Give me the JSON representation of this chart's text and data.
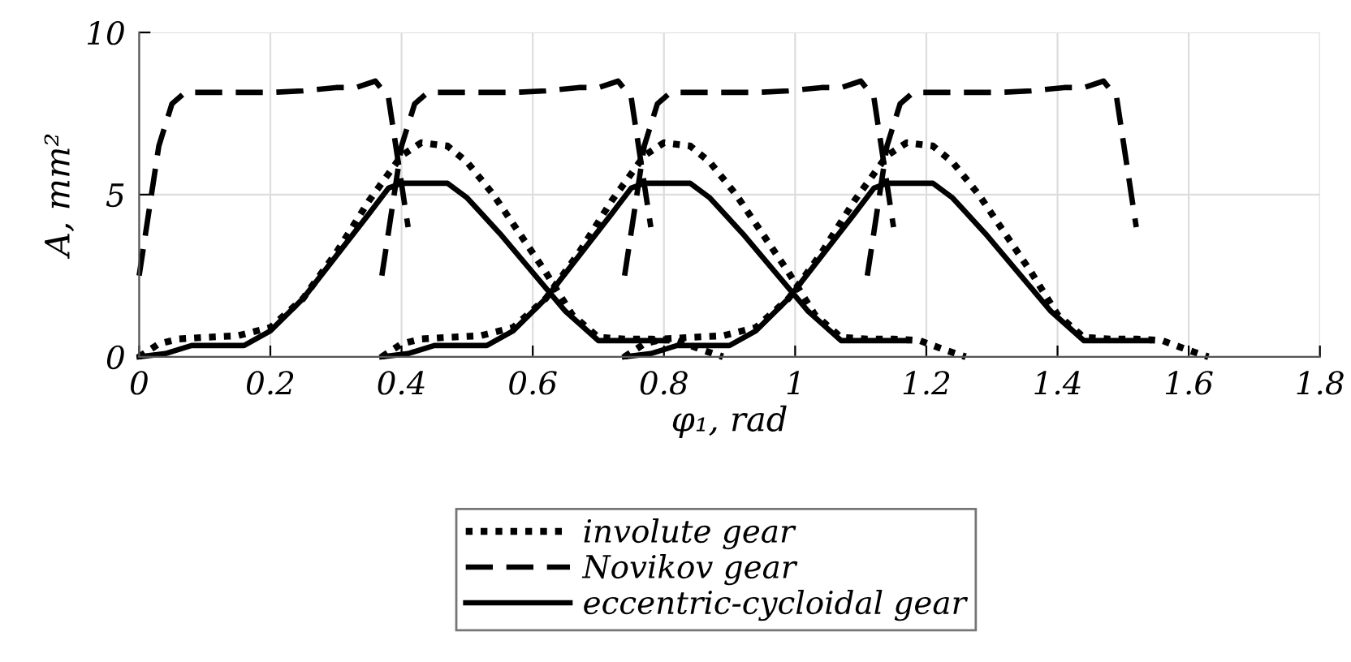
{
  "chart_data": {
    "type": "line",
    "xlabel": "φ₁, rad",
    "ylabel": "A, mm²",
    "xlim": [
      0,
      1.8
    ],
    "xticks": [
      0,
      0.2,
      0.4,
      0.6,
      0.8,
      1,
      1.2,
      1.4,
      1.6,
      1.8
    ],
    "ylim": [
      0,
      10
    ],
    "yticks": [
      0,
      5,
      10
    ],
    "grid": true,
    "legend": "bottom",
    "marker": "none",
    "series": [
      {
        "name": "involute gear",
        "color": "#000000",
        "line_style": "dotted",
        "x": [
          0,
          0.03,
          0.06,
          0.1,
          0.15,
          0.2,
          0.25,
          0.3,
          0.35,
          0.4,
          0.43,
          0.47,
          0.5,
          0.54,
          0.58,
          0.62,
          0.66,
          0.7,
          0.74,
          0.78,
          0.82,
          0.86,
          0.89
        ],
        "values": [
          0,
          0.4,
          0.55,
          0.6,
          0.65,
          0.9,
          1.8,
          3.2,
          4.8,
          6.2,
          6.6,
          6.5,
          6.0,
          5.0,
          3.8,
          2.6,
          1.3,
          0.6,
          0.55,
          0.55,
          0.5,
          0.2,
          0
        ]
      },
      {
        "color": "#000000",
        "line_style": "dotted",
        "x": [
          0.37,
          0.4,
          0.43,
          0.47,
          0.52,
          0.57,
          0.62,
          0.67,
          0.72,
          0.77,
          0.8,
          0.84,
          0.87,
          0.91,
          0.95,
          0.99,
          1.03,
          1.07,
          1.11,
          1.15,
          1.19,
          1.23,
          1.26
        ],
        "values": [
          0,
          0.4,
          0.55,
          0.6,
          0.65,
          0.9,
          1.8,
          3.2,
          4.8,
          6.2,
          6.6,
          6.5,
          6.0,
          5.0,
          3.8,
          2.6,
          1.3,
          0.6,
          0.55,
          0.55,
          0.5,
          0.2,
          0
        ]
      },
      {
        "color": "#000000",
        "line_style": "dotted",
        "x": [
          0.74,
          0.77,
          0.8,
          0.84,
          0.89,
          0.94,
          0.99,
          1.04,
          1.09,
          1.14,
          1.17,
          1.21,
          1.24,
          1.28,
          1.32,
          1.36,
          1.4,
          1.44,
          1.48,
          1.52,
          1.56,
          1.6,
          1.63
        ],
        "values": [
          0,
          0.4,
          0.55,
          0.6,
          0.65,
          0.9,
          1.8,
          3.2,
          4.8,
          6.2,
          6.6,
          6.5,
          6.0,
          5.0,
          3.8,
          2.6,
          1.3,
          0.6,
          0.55,
          0.55,
          0.5,
          0.2,
          0
        ]
      },
      {
        "name": "Novikov gear",
        "color": "#000000",
        "line_style": "dashed",
        "x": [
          0,
          0.03,
          0.05,
          0.07,
          0.15,
          0.2,
          0.25,
          0.3,
          0.33,
          0.36,
          0.38,
          0.41
        ],
        "values": [
          2.5,
          6.5,
          7.8,
          8.15,
          8.15,
          8.15,
          8.2,
          8.3,
          8.3,
          8.5,
          8.0,
          4.0
        ]
      },
      {
        "color": "#000000",
        "line_style": "dashed",
        "x": [
          0.37,
          0.4,
          0.42,
          0.44,
          0.52,
          0.57,
          0.62,
          0.67,
          0.7,
          0.73,
          0.75,
          0.78
        ],
        "values": [
          2.5,
          6.5,
          7.8,
          8.15,
          8.15,
          8.15,
          8.2,
          8.3,
          8.3,
          8.5,
          8.0,
          4.0
        ]
      },
      {
        "color": "#000000",
        "line_style": "dashed",
        "x": [
          0.74,
          0.77,
          0.79,
          0.81,
          0.89,
          0.94,
          0.99,
          1.04,
          1.07,
          1.1,
          1.12,
          1.15
        ],
        "values": [
          2.5,
          6.5,
          7.8,
          8.15,
          8.15,
          8.15,
          8.2,
          8.3,
          8.3,
          8.5,
          8.0,
          4.0
        ]
      },
      {
        "color": "#000000",
        "line_style": "dashed",
        "x": [
          1.11,
          1.14,
          1.16,
          1.18,
          1.26,
          1.31,
          1.36,
          1.41,
          1.44,
          1.47,
          1.49,
          1.52
        ],
        "values": [
          2.5,
          6.5,
          7.8,
          8.15,
          8.15,
          8.15,
          8.2,
          8.3,
          8.3,
          8.5,
          8.0,
          4.0
        ]
      },
      {
        "name": "eccentric-cycloidal gear",
        "color": "#000000",
        "line_style": "solid",
        "x": [
          0,
          0.04,
          0.08,
          0.12,
          0.16,
          0.2,
          0.25,
          0.3,
          0.35,
          0.38,
          0.4,
          0.47,
          0.5,
          0.55,
          0.6,
          0.65,
          0.7,
          0.75,
          0.8
        ],
        "values": [
          0,
          0.1,
          0.35,
          0.35,
          0.35,
          0.8,
          1.8,
          3.1,
          4.4,
          5.2,
          5.35,
          5.35,
          4.9,
          3.8,
          2.6,
          1.4,
          0.5,
          0.5,
          0.5
        ]
      },
      {
        "color": "#000000",
        "line_style": "solid",
        "x": [
          0.37,
          0.41,
          0.45,
          0.49,
          0.53,
          0.57,
          0.62,
          0.67,
          0.72,
          0.75,
          0.77,
          0.84,
          0.87,
          0.92,
          0.97,
          1.02,
          1.07,
          1.12,
          1.17
        ],
        "values": [
          0,
          0.1,
          0.35,
          0.35,
          0.35,
          0.8,
          1.8,
          3.1,
          4.4,
          5.2,
          5.35,
          5.35,
          4.9,
          3.8,
          2.6,
          1.4,
          0.5,
          0.5,
          0.5
        ]
      },
      {
        "color": "#000000",
        "line_style": "solid",
        "x": [
          0.74,
          0.78,
          0.82,
          0.86,
          0.9,
          0.94,
          0.99,
          1.04,
          1.09,
          1.12,
          1.14,
          1.21,
          1.24,
          1.29,
          1.34,
          1.39,
          1.44,
          1.49,
          1.54
        ],
        "values": [
          0,
          0.1,
          0.35,
          0.35,
          0.35,
          0.8,
          1.8,
          3.1,
          4.4,
          5.2,
          5.35,
          5.35,
          4.9,
          3.8,
          2.6,
          1.4,
          0.5,
          0.5,
          0.5
        ]
      }
    ]
  }
}
